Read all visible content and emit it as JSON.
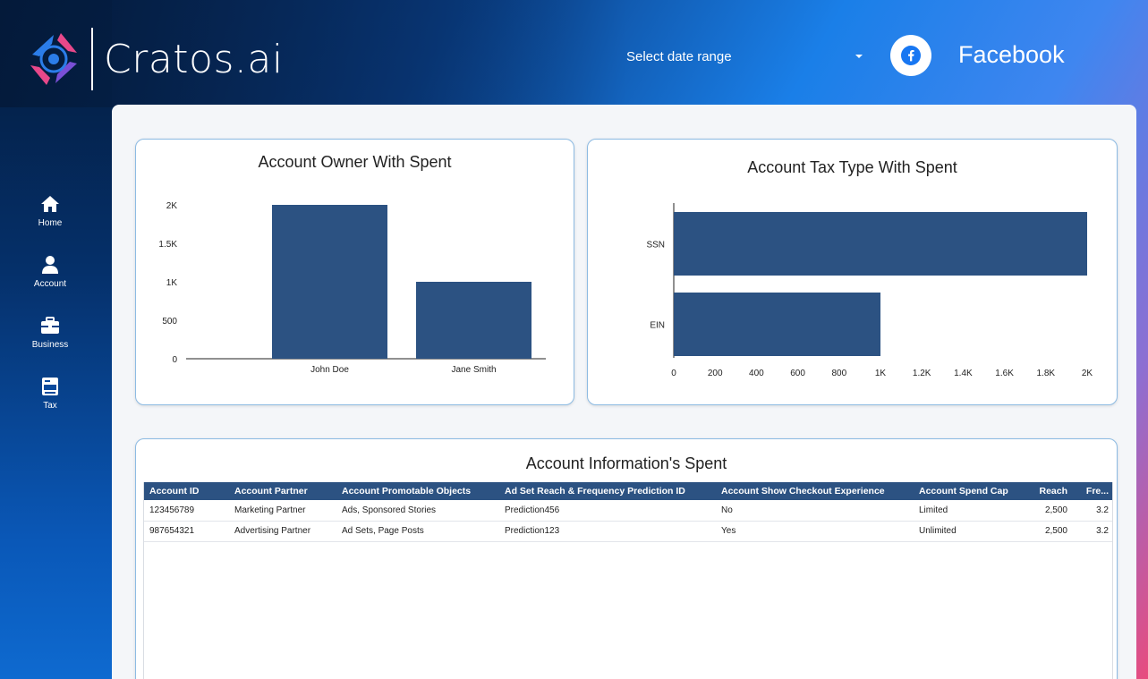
{
  "brand": {
    "name": "Cratos.ai"
  },
  "header": {
    "date_range_label": "Select date range",
    "platform_label": "Facebook"
  },
  "sidebar": {
    "items": [
      {
        "label": "Home",
        "icon": "home-icon"
      },
      {
        "label": "Account",
        "icon": "user-icon"
      },
      {
        "label": "Business",
        "icon": "briefcase-icon"
      },
      {
        "label": "Tax",
        "icon": "tax-icon"
      }
    ]
  },
  "colors": {
    "bar": "#2c5282",
    "card_border": "#8dbbe3",
    "header_row": "#2c5282"
  },
  "charts": {
    "owner": {
      "title": "Account Owner With Spent",
      "y_ticks": [
        "0",
        "500",
        "1K",
        "1.5K",
        "2K"
      ]
    },
    "tax": {
      "title": "Account Tax Type With Spent",
      "x_ticks": [
        "0",
        "200",
        "400",
        "600",
        "800",
        "1K",
        "1.2K",
        "1.4K",
        "1.6K",
        "1.8K",
        "2K"
      ]
    }
  },
  "chart_data": [
    {
      "type": "bar",
      "title": "Account Owner With Spent",
      "categories": [
        "John Doe",
        "Jane Smith"
      ],
      "values": [
        2000,
        1000
      ],
      "xlabel": "",
      "ylabel": "",
      "ylim": [
        0,
        2000
      ],
      "grid": false
    },
    {
      "type": "bar",
      "orientation": "horizontal",
      "title": "Account Tax Type With Spent",
      "categories": [
        "SSN",
        "EIN"
      ],
      "values": [
        2000,
        1000
      ],
      "xlabel": "",
      "ylabel": "",
      "xlim": [
        0,
        2000
      ],
      "grid": false
    }
  ],
  "table": {
    "title": "Account Information's Spent",
    "columns": [
      "Account ID",
      "Account Partner",
      "Account Promotable Objects",
      "Ad Set Reach & Frequency Prediction ID",
      "Account Show Checkout Experience",
      "Account Spend Cap",
      "Reach",
      "Fre..."
    ],
    "rows": [
      [
        "123456789",
        "Marketing Partner",
        "Ads, Sponsored Stories",
        "Prediction456",
        "No",
        "Limited",
        "2,500",
        "3.2"
      ],
      [
        "987654321",
        "Advertising Partner",
        "Ad Sets, Page Posts",
        "Prediction123",
        "Yes",
        "Unlimited",
        "2,500",
        "3.2"
      ]
    ]
  }
}
